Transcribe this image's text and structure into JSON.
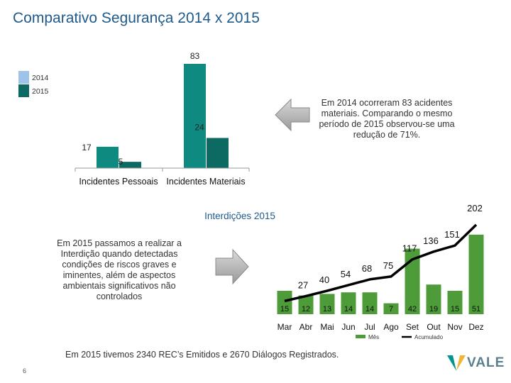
{
  "page": {
    "title": "Comparativo Segurança 2014 x 2015",
    "note_2014": "Em 2014 ocorreram 83 acidentes materiais. Comparando o mesmo período de 2015 observou-se uma redução de 71%.",
    "note_2015": "Em 2015 passamos a realizar a Interdição quando detectadas condições de riscos graves e iminentes, além de aspectos ambientais significativos não controlados",
    "footer": "Em 2015 tivemos 2340 REC’s Emitidos e 2670 Diálogos Registrados.",
    "page_number": "6",
    "logo_text": "VALE"
  },
  "chart_data": [
    {
      "type": "bar",
      "title": "",
      "categories": [
        "Incidentes Pessoais",
        "Incidentes Materiais"
      ],
      "series": [
        {
          "name": "2014",
          "values": [
            17,
            83
          ],
          "color": "#0e8a80"
        },
        {
          "name": "2015",
          "values": [
            5,
            24
          ],
          "color": "#0c6a62"
        }
      ],
      "legend": [
        "2014",
        "2015"
      ],
      "legend_colors": [
        "#9dc3e6",
        "#0c6a62"
      ],
      "ylim": [
        0,
        83
      ]
    },
    {
      "type": "bar+line",
      "title": "Interdições 2015",
      "categories": [
        "Mar",
        "Abr",
        "Mai",
        "Jun",
        "Jul",
        "Ago",
        "Set",
        "Out",
        "Nov",
        "Dez"
      ],
      "series": [
        {
          "name": "Mês",
          "type": "bar",
          "values": [
            15,
            12,
            13,
            14,
            14,
            7,
            42,
            19,
            15,
            51
          ],
          "color": "#4e9b3a"
        },
        {
          "name": "Acumulado",
          "type": "line",
          "values": [
            15,
            27,
            40,
            54,
            68,
            75,
            117,
            136,
            151,
            202
          ],
          "color": "#000000"
        }
      ],
      "bar_labels": [
        "15",
        "12",
        "13",
        "14",
        "14",
        "7",
        "42",
        "19",
        "15",
        "51"
      ],
      "line_labels": [
        "",
        "27",
        "40",
        "54",
        "68",
        "75",
        "117",
        "136",
        "151",
        "202"
      ],
      "legend": [
        "Mês",
        "Acumulado"
      ],
      "ylim": [
        0,
        202
      ]
    }
  ]
}
